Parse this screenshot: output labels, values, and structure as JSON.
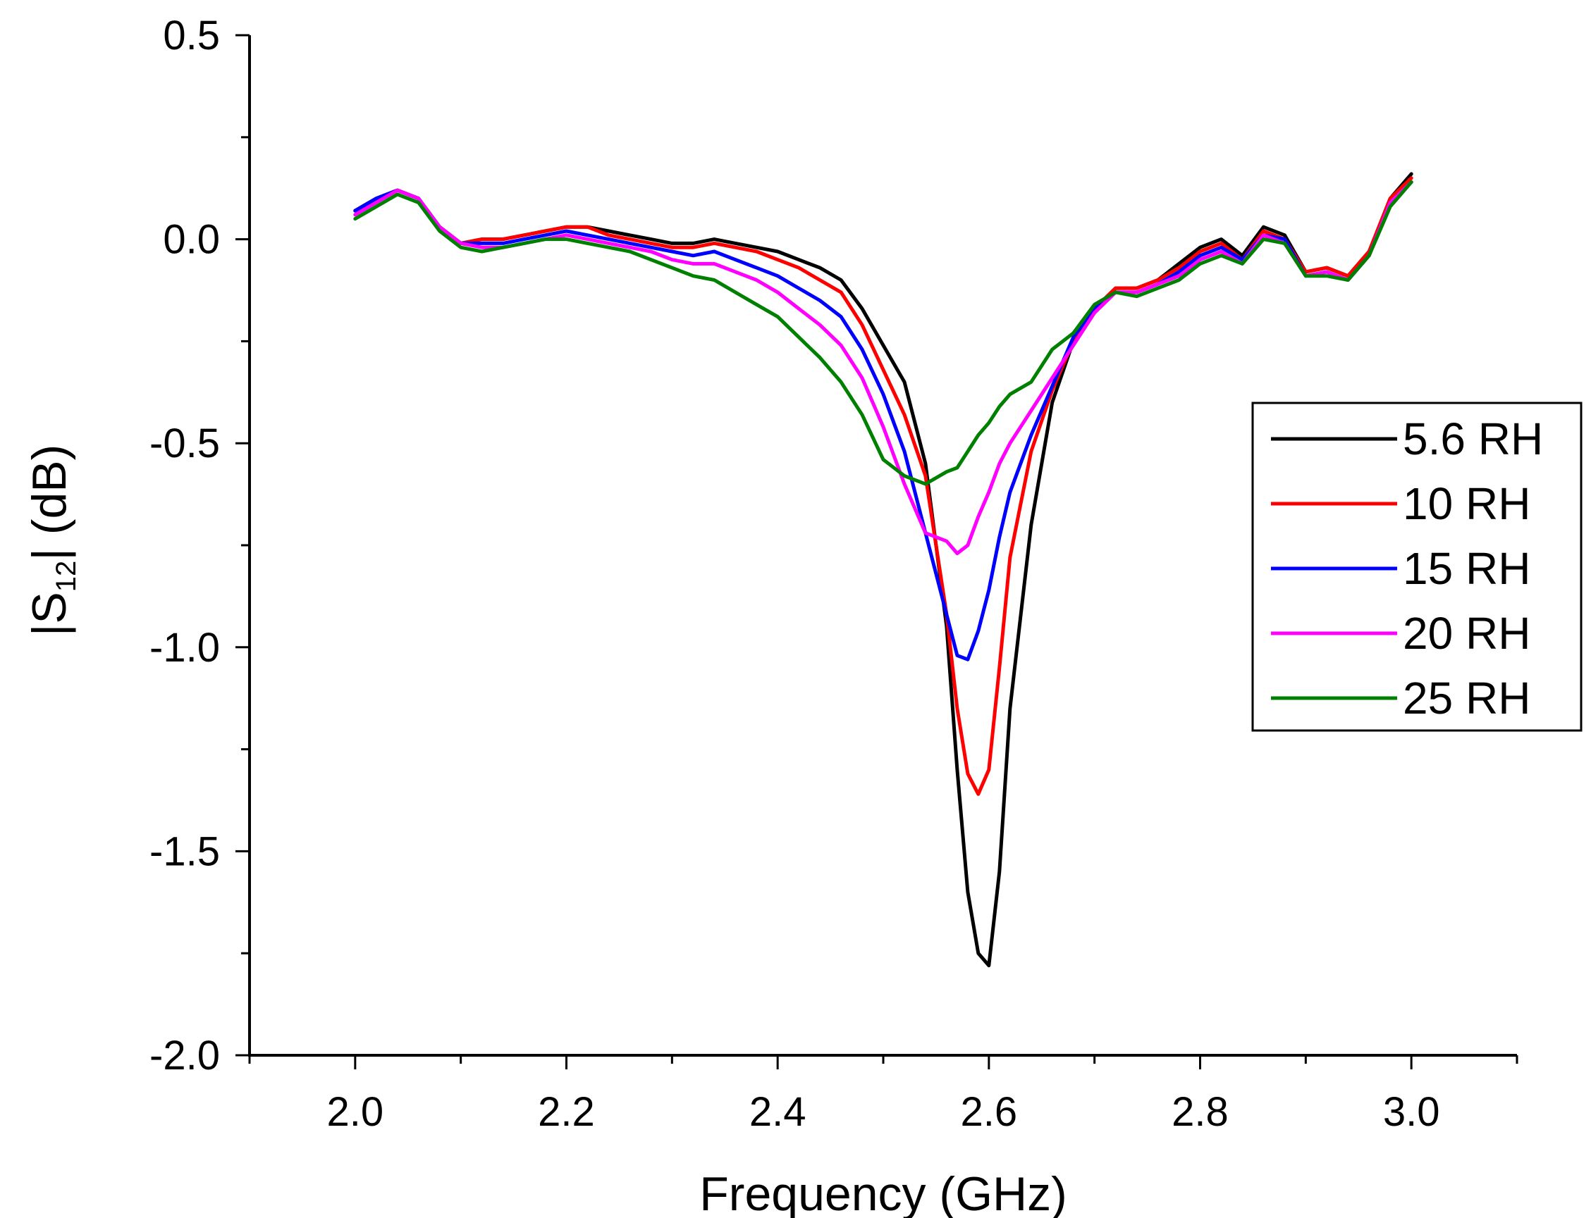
{
  "chart_data": {
    "type": "line",
    "title": "",
    "xlabel": "Frequency (GHz)",
    "ylabel": {
      "prefix": "|S",
      "subscript": "12",
      "suffix": "| (dB)"
    },
    "xlim": [
      1.9,
      3.1
    ],
    "ylim": [
      -2.0,
      0.5
    ],
    "xticks": [
      2.0,
      2.2,
      2.4,
      2.6,
      2.8,
      3.0
    ],
    "xtick_labels": [
      "2.0",
      "2.2",
      "2.4",
      "2.6",
      "2.8",
      "3.0"
    ],
    "yticks": [
      0.5,
      0.0,
      -0.5,
      -1.0,
      -1.5,
      -2.0
    ],
    "ytick_labels": [
      "0.5",
      "0.0",
      "-0.5",
      "-1.0",
      "-1.5",
      "-2.0"
    ],
    "grid": false,
    "legend_position": "right",
    "x": [
      2.0,
      2.02,
      2.04,
      2.06,
      2.08,
      2.1,
      2.12,
      2.14,
      2.16,
      2.18,
      2.2,
      2.22,
      2.24,
      2.26,
      2.28,
      2.3,
      2.32,
      2.34,
      2.36,
      2.38,
      2.4,
      2.42,
      2.44,
      2.46,
      2.48,
      2.5,
      2.52,
      2.54,
      2.56,
      2.57,
      2.58,
      2.59,
      2.6,
      2.61,
      2.62,
      2.64,
      2.66,
      2.68,
      2.7,
      2.72,
      2.74,
      2.76,
      2.78,
      2.8,
      2.82,
      2.84,
      2.86,
      2.88,
      2.9,
      2.92,
      2.94,
      2.96,
      2.98,
      3.0
    ],
    "series": [
      {
        "name": "5.6 RH",
        "color": "#000000",
        "values": [
          0.07,
          0.1,
          0.12,
          0.1,
          0.03,
          -0.01,
          0.0,
          0.0,
          0.01,
          0.02,
          0.03,
          0.03,
          0.02,
          0.01,
          0.0,
          -0.01,
          -0.01,
          0.0,
          -0.01,
          -0.02,
          -0.03,
          -0.05,
          -0.07,
          -0.1,
          -0.17,
          -0.26,
          -0.35,
          -0.55,
          -0.95,
          -1.3,
          -1.6,
          -1.75,
          -1.78,
          -1.55,
          -1.15,
          -0.7,
          -0.4,
          -0.25,
          -0.17,
          -0.12,
          -0.12,
          -0.1,
          -0.06,
          -0.02,
          0.0,
          -0.04,
          0.03,
          0.01,
          -0.08,
          -0.07,
          -0.09,
          -0.03,
          0.1,
          0.16
        ]
      },
      {
        "name": "10 RH",
        "color": "#ff0000",
        "values": [
          0.07,
          0.1,
          0.12,
          0.1,
          0.03,
          -0.01,
          0.0,
          0.0,
          0.01,
          0.02,
          0.03,
          0.03,
          0.01,
          0.0,
          -0.01,
          -0.02,
          -0.02,
          -0.01,
          -0.02,
          -0.03,
          -0.05,
          -0.07,
          -0.1,
          -0.13,
          -0.21,
          -0.32,
          -0.43,
          -0.58,
          -0.92,
          -1.15,
          -1.31,
          -1.36,
          -1.3,
          -1.05,
          -0.78,
          -0.52,
          -0.37,
          -0.25,
          -0.17,
          -0.12,
          -0.12,
          -0.1,
          -0.07,
          -0.03,
          -0.01,
          -0.05,
          0.02,
          0.0,
          -0.08,
          -0.07,
          -0.09,
          -0.03,
          0.1,
          0.15
        ]
      },
      {
        "name": "15 RH",
        "color": "#0000ff",
        "values": [
          0.07,
          0.1,
          0.12,
          0.1,
          0.03,
          -0.01,
          -0.01,
          -0.01,
          0.0,
          0.01,
          0.02,
          0.01,
          0.0,
          -0.01,
          -0.02,
          -0.03,
          -0.04,
          -0.03,
          -0.05,
          -0.07,
          -0.09,
          -0.12,
          -0.15,
          -0.19,
          -0.27,
          -0.38,
          -0.52,
          -0.72,
          -0.92,
          -1.02,
          -1.03,
          -0.96,
          -0.86,
          -0.73,
          -0.62,
          -0.48,
          -0.36,
          -0.24,
          -0.17,
          -0.13,
          -0.13,
          -0.11,
          -0.08,
          -0.04,
          -0.02,
          -0.05,
          0.01,
          0.0,
          -0.09,
          -0.08,
          -0.1,
          -0.04,
          0.09,
          0.14
        ]
      },
      {
        "name": "20 RH",
        "color": "#ff00ff",
        "values": [
          0.06,
          0.09,
          0.12,
          0.1,
          0.03,
          -0.01,
          -0.02,
          -0.02,
          -0.01,
          0.0,
          0.01,
          0.0,
          -0.01,
          -0.02,
          -0.03,
          -0.05,
          -0.06,
          -0.06,
          -0.08,
          -0.1,
          -0.13,
          -0.17,
          -0.21,
          -0.26,
          -0.34,
          -0.46,
          -0.6,
          -0.72,
          -0.74,
          -0.77,
          -0.75,
          -0.68,
          -0.62,
          -0.55,
          -0.5,
          -0.42,
          -0.34,
          -0.26,
          -0.18,
          -0.13,
          -0.13,
          -0.11,
          -0.09,
          -0.05,
          -0.03,
          -0.06,
          0.01,
          -0.01,
          -0.09,
          -0.08,
          -0.1,
          -0.04,
          0.09,
          0.14
        ]
      },
      {
        "name": "25 RH",
        "color": "#008000",
        "values": [
          0.05,
          0.08,
          0.11,
          0.09,
          0.02,
          -0.02,
          -0.03,
          -0.02,
          -0.01,
          0.0,
          0.0,
          -0.01,
          -0.02,
          -0.03,
          -0.05,
          -0.07,
          -0.09,
          -0.1,
          -0.13,
          -0.16,
          -0.19,
          -0.24,
          -0.29,
          -0.35,
          -0.43,
          -0.54,
          -0.58,
          -0.6,
          -0.57,
          -0.56,
          -0.52,
          -0.48,
          -0.45,
          -0.41,
          -0.38,
          -0.35,
          -0.27,
          -0.23,
          -0.16,
          -0.13,
          -0.14,
          -0.12,
          -0.1,
          -0.06,
          -0.04,
          -0.06,
          0.0,
          -0.01,
          -0.09,
          -0.09,
          -0.1,
          -0.04,
          0.08,
          0.14
        ]
      }
    ]
  }
}
